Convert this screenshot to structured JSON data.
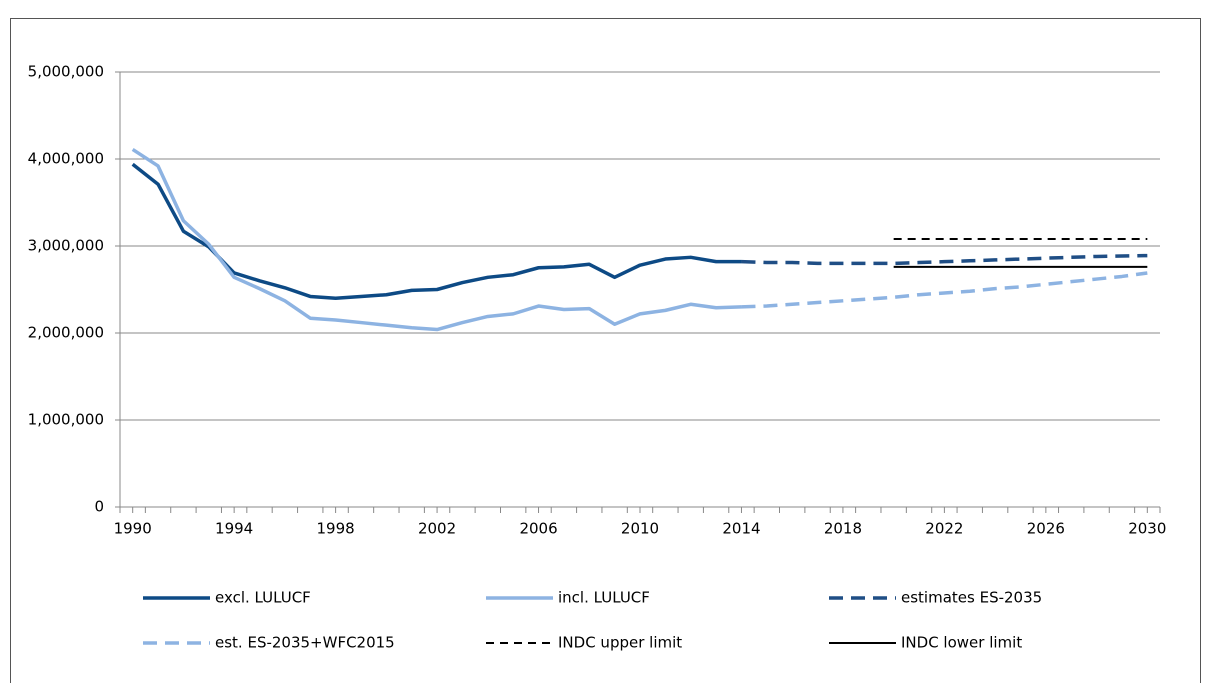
{
  "chart_data": {
    "type": "line",
    "xlim": [
      1989.5,
      2030.5
    ],
    "xticks": [
      1990,
      1994,
      1998,
      2002,
      2006,
      2010,
      2014,
      2018,
      2022,
      2026,
      2030
    ],
    "ylim": [
      0,
      5000000
    ],
    "yticks": [
      0,
      {
        "value": 1000000,
        "label": "1,000,000"
      },
      {
        "value": 2000000,
        "label": "2,000,000"
      },
      {
        "value": 3000000,
        "label": "3,000,000"
      },
      {
        "value": 4000000,
        "label": "4,000,000"
      },
      {
        "value": 5000000,
        "label": "5,000,000"
      }
    ],
    "grid": true,
    "legend": "bottom",
    "series": [
      {
        "name": "excl. LULUCF",
        "color": "#0d4a85",
        "dashed": false,
        "x": [
          1990,
          1991,
          1992,
          1993,
          1994,
          1995,
          1996,
          1997,
          1998,
          1999,
          2000,
          2001,
          2002,
          2003,
          2004,
          2005,
          2006,
          2007,
          2008,
          2009,
          2010,
          2011,
          2012,
          2013,
          2014
        ],
        "values": [
          3940000,
          3710000,
          3170000,
          2990000,
          2690000,
          2600000,
          2520000,
          2420000,
          2400000,
          2420000,
          2440000,
          2490000,
          2500000,
          2580000,
          2640000,
          2670000,
          2750000,
          2760000,
          2790000,
          2640000,
          2780000,
          2850000,
          2870000,
          2820000,
          2820000
        ]
      },
      {
        "name": "incl. LULUCF",
        "color": "#8db3e2",
        "dashed": false,
        "x": [
          1990,
          1991,
          1992,
          1993,
          1994,
          1995,
          1996,
          1997,
          1998,
          1999,
          2000,
          2001,
          2002,
          2003,
          2004,
          2005,
          2006,
          2007,
          2008,
          2009,
          2010,
          2011,
          2012,
          2013,
          2014
        ],
        "values": [
          4110000,
          3920000,
          3290000,
          3020000,
          2640000,
          2510000,
          2370000,
          2170000,
          2150000,
          2120000,
          2090000,
          2060000,
          2040000,
          2120000,
          2190000,
          2220000,
          2310000,
          2270000,
          2280000,
          2100000,
          2220000,
          2260000,
          2330000,
          2290000,
          2300000
        ]
      },
      {
        "name": "estimates ES-2035",
        "color": "#1f4e85",
        "dashed": true,
        "x": [
          2014,
          2015,
          2016,
          2017,
          2018,
          2019,
          2020,
          2021,
          2022,
          2023,
          2024,
          2025,
          2026,
          2027,
          2028,
          2029,
          2030
        ],
        "values": [
          2820000,
          2810000,
          2810000,
          2800000,
          2800000,
          2800000,
          2800000,
          2810000,
          2820000,
          2830000,
          2840000,
          2850000,
          2860000,
          2870000,
          2880000,
          2885000,
          2890000
        ]
      },
      {
        "name": "est. ES-2035+WFC2015",
        "color": "#8db3e2",
        "dashed": true,
        "x": [
          2014,
          2015,
          2016,
          2017,
          2018,
          2019,
          2020,
          2021,
          2022,
          2023,
          2024,
          2025,
          2026,
          2027,
          2028,
          2029,
          2030
        ],
        "values": [
          2300000,
          2310000,
          2330000,
          2350000,
          2370000,
          2390000,
          2410000,
          2440000,
          2460000,
          2480000,
          2510000,
          2530000,
          2560000,
          2590000,
          2620000,
          2650000,
          2690000
        ]
      },
      {
        "name": "INDC upper limit",
        "color": "#000000",
        "dashed": true,
        "x": [
          2020,
          2030
        ],
        "values": [
          3080000,
          3080000
        ]
      },
      {
        "name": "INDC lower limit",
        "color": "#000000",
        "dashed": false,
        "x": [
          2020,
          2030
        ],
        "values": [
          2760000,
          2760000
        ]
      }
    ]
  }
}
